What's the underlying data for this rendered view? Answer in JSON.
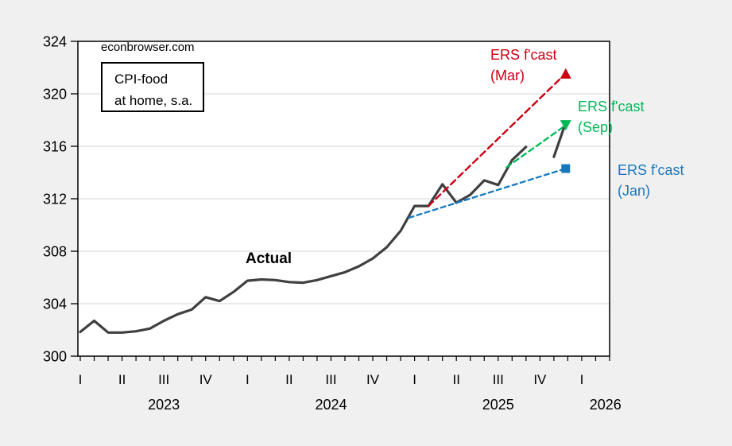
{
  "source": "econbrowser.com",
  "note_box": {
    "line1": "CPI-food",
    "line2": "at home, s.a."
  },
  "labels": {
    "actual": "Actual",
    "fcast_mar": {
      "line1": "ERS f'cast",
      "line2": "(Mar)"
    },
    "fcast_sep": {
      "line1": "ERS f'cast",
      "line2": "(Sep)"
    },
    "fcast_jan": {
      "line1": "ERS f'cast",
      "line2": "(Jan)"
    }
  },
  "colors": {
    "page_bg": "#f0f0f0",
    "plot_bg": "#ffffff",
    "grid": "#d6d6d6",
    "frame": "#000000",
    "actual": "#404040",
    "mar": "#cc0011",
    "sep": "#00b956",
    "jan": "#1878be"
  },
  "chart_data": {
    "type": "line",
    "title": "CPI-food at home, s.a.",
    "x_unit": "months, m=0 at 2023-01",
    "y_axis": {
      "min": 300,
      "max": 324,
      "tick_step": 4,
      "ticks": [
        300,
        304,
        308,
        312,
        316,
        320,
        324
      ]
    },
    "x_axis": {
      "month_tick_range": [
        0,
        38
      ],
      "quarter_labels": [
        "I",
        "II",
        "III",
        "IV",
        "I",
        "II",
        "III",
        "IV",
        "I",
        "II",
        "III",
        "IV",
        "I"
      ],
      "quarter_label_months": [
        0,
        3,
        6,
        9,
        12,
        15,
        18,
        21,
        24,
        27,
        30,
        33,
        36
      ],
      "year_labels": [
        {
          "label": "2023",
          "m": 6.0
        },
        {
          "label": "2024",
          "m": 18.0
        },
        {
          "label": "2025",
          "m": 30.0
        },
        {
          "label": "2026",
          "m": 37.7
        }
      ]
    },
    "series": [
      {
        "id": "actual",
        "name": "Actual",
        "style": "solid",
        "color_key": "actual",
        "start": "2023-01",
        "freq": "monthly",
        "points": [
          [
            0,
            301.85
          ],
          [
            1,
            302.7
          ],
          [
            2,
            301.8
          ],
          [
            3,
            301.8
          ],
          [
            4,
            301.9
          ],
          [
            5,
            302.1
          ],
          [
            6,
            302.7
          ],
          [
            7,
            303.2
          ],
          [
            8,
            303.55
          ],
          [
            9,
            304.5
          ],
          [
            10,
            304.2
          ],
          [
            11,
            304.9
          ],
          [
            12,
            305.75
          ],
          [
            13,
            305.85
          ],
          [
            14,
            305.8
          ],
          [
            15,
            305.65
          ],
          [
            16,
            305.6
          ],
          [
            17,
            305.8
          ],
          [
            18,
            306.1
          ],
          [
            19,
            306.4
          ],
          [
            20,
            306.85
          ],
          [
            21,
            307.45
          ],
          [
            22,
            308.3
          ],
          [
            23,
            309.55
          ],
          [
            24,
            311.45
          ],
          [
            25,
            311.45
          ],
          [
            26,
            313.1
          ],
          [
            27,
            311.7
          ],
          [
            28,
            312.3
          ],
          [
            29,
            313.4
          ],
          [
            30,
            313.05
          ],
          [
            31,
            314.95
          ],
          [
            32,
            315.95
          ]
        ]
      },
      {
        "id": "actual_tail",
        "name": "Actual (latest segment)",
        "style": "solid",
        "color_key": "actual",
        "points": [
          [
            34,
            315.2
          ],
          [
            34.7,
            317.35
          ]
        ]
      },
      {
        "id": "fcast_mar",
        "name": "ERS f'cast (Mar)",
        "style": "dashed",
        "dash": "8 5",
        "color_key": "mar",
        "marker": "triangle-up",
        "points": [
          [
            25,
            311.45
          ],
          [
            34.85,
            321.55
          ]
        ]
      },
      {
        "id": "fcast_sep",
        "name": "ERS f'cast (Sep)",
        "style": "dashed",
        "dash": "7 4.5",
        "color_key": "sep",
        "marker": "triangle-down",
        "points": [
          [
            30.6,
            314.4
          ],
          [
            34.85,
            317.6
          ]
        ]
      },
      {
        "id": "fcast_jan",
        "name": "ERS f'cast (Jan)",
        "style": "dashed",
        "dash": "6 4.5",
        "color_key": "jan",
        "marker": "square",
        "points": [
          [
            23.6,
            310.55
          ],
          [
            34.85,
            314.3
          ]
        ]
      }
    ]
  }
}
